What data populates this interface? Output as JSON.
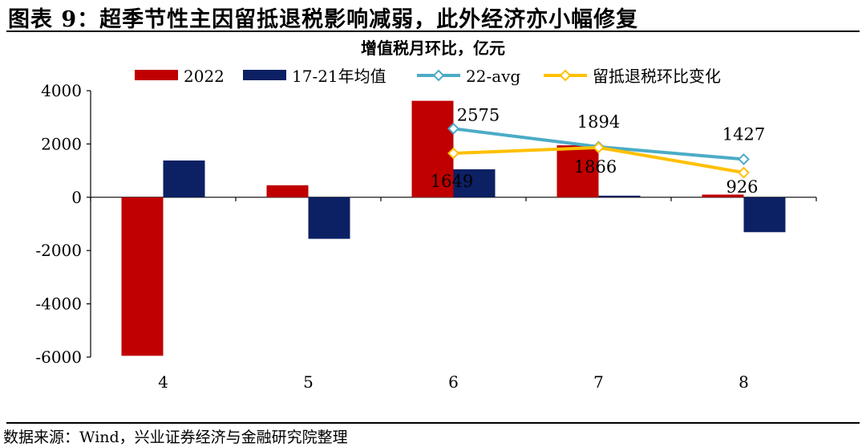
{
  "figure_title": "图表 9：超季节性主因留抵退税影响减弱，此外经济亦小幅修复",
  "source_text": "数据来源：Wind，兴业证券经济与金融研究院整理",
  "colors": {
    "bar_2022": "#C00000",
    "bar_avg": "#0C2064",
    "line_22avg": "#4BACC6",
    "line_refund": "#FFC000"
  },
  "chart_data": {
    "type": "bar",
    "title": "增值税月环比，亿元",
    "categories": [
      "4",
      "5",
      "6",
      "7",
      "8"
    ],
    "ylim": [
      -6000,
      4000
    ],
    "yticks": [
      "4000",
      "2000",
      "0",
      "-2000",
      "-4000",
      "-6000"
    ],
    "series": [
      {
        "name": "2022",
        "kind": "bar",
        "values": [
          -5950,
          450,
          3620,
          1950,
          100
        ]
      },
      {
        "name": "17-21年均值",
        "kind": "bar",
        "values": [
          1380,
          -1560,
          1050,
          60,
          -1310
        ]
      },
      {
        "name": "22-avg",
        "kind": "line",
        "x": [
          "6",
          "7",
          "8"
        ],
        "values": [
          2575,
          1894,
          1427
        ]
      },
      {
        "name": "留抵退税环比变化",
        "kind": "line",
        "x": [
          "6",
          "7",
          "8"
        ],
        "values": [
          1649,
          1866,
          926
        ]
      }
    ],
    "data_labels": {
      "line_22avg": [
        "2575",
        "1894",
        "1427"
      ],
      "line_refund": [
        "1649",
        "1866",
        "926"
      ]
    }
  }
}
